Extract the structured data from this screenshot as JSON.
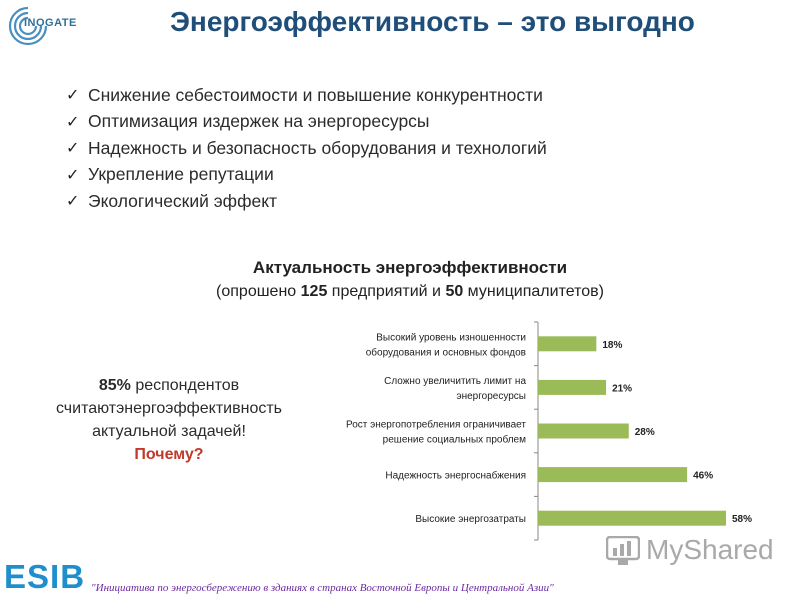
{
  "header": {
    "logo_text": "INOGATE",
    "title": "Энергоэффективность – это выгодно"
  },
  "bullets": [
    "Снижение себестоимости и повышение конкурентности",
    "Оптимизация издержек на энергоресурсы",
    "Надежность и безопасность оборудования и технологий",
    "Укрепление репутации",
    "Экологический эффект"
  ],
  "chart_heading": {
    "title": "Актуальность энергоэффективности",
    "subtitle_before": "(опрошено ",
    "subtitle_n1": "125",
    "subtitle_mid": " предприятий и ",
    "subtitle_n2": "50",
    "subtitle_after": " муниципалитетов)"
  },
  "side_note": {
    "pct": "85%",
    "line1_rest": " респондентов",
    "line2": "считаютэнергоэффективность",
    "line3": "актуальной задачей!",
    "line4": "Почему?"
  },
  "chart_data": {
    "type": "bar",
    "orientation": "horizontal",
    "title": "Актуальность энергоэффективности",
    "categories": [
      [
        "Высокий уровень изношенности",
        "оборудования и основных фондов"
      ],
      [
        "Сложно увеличитить лимит на",
        "энергоресурсы"
      ],
      [
        "Рост энергопотребления ограничивает",
        "решение социальных проблем"
      ],
      [
        "Надежность энергоснабжения"
      ],
      [
        "Высокие энергозатраты"
      ]
    ],
    "values": [
      18,
      21,
      28,
      46,
      58
    ],
    "value_labels": [
      "18%",
      "21%",
      "28%",
      "46%",
      "58%"
    ],
    "unit": "%",
    "xlim": [
      0,
      58
    ],
    "grid": false,
    "bar_color": "#9bbb59"
  },
  "watermark": {
    "text": "MyShared"
  },
  "footer": {
    "brand": "ESIB",
    "text": "\"Инициатива по энергосбережению в зданиях в странах Восточной Европы и Центральной Азии\""
  }
}
